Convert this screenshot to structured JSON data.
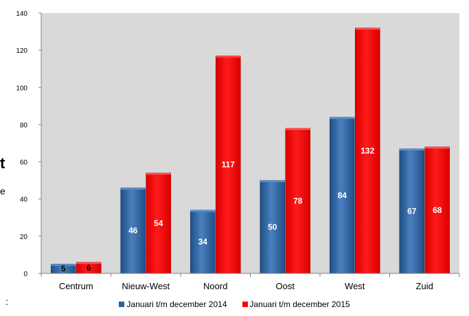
{
  "chart_data": {
    "type": "bar",
    "categories": [
      "Centrum",
      "Nieuw-West",
      "Noord",
      "Oost",
      "West",
      "Zuid"
    ],
    "series": [
      {
        "name": "Januari t/m december 2014",
        "values": [
          5,
          46,
          34,
          50,
          84,
          67
        ],
        "color": "#2e5f9e"
      },
      {
        "name": "Januari t/m december 2015",
        "values": [
          6,
          54,
          117,
          78,
          132,
          68
        ],
        "color": "#ff0000"
      }
    ],
    "ylim": [
      0,
      140
    ],
    "yticks": [
      "0",
      "20",
      "40",
      "60",
      "80",
      "100",
      "120",
      "140"
    ],
    "grid": false,
    "plot_background": "#d9d9d9",
    "legend_position": "bottom",
    "data_labels": true,
    "cropped_text": [
      "t",
      "e",
      ":"
    ]
  }
}
